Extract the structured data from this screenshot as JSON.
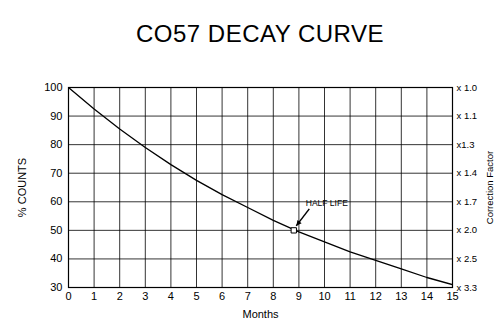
{
  "chart_data": {
    "type": "line",
    "title": "CO57 DECAY CURVE",
    "xlabel": "Months",
    "ylabel": "% COUNTS",
    "y2label": "Correction Factor",
    "x": [
      0,
      1,
      2,
      3,
      4,
      5,
      6,
      7,
      8,
      9,
      10,
      11,
      12,
      13,
      14,
      15
    ],
    "values": [
      100,
      92.5,
      85.5,
      79,
      73,
      67.5,
      62.5,
      58,
      53.5,
      49.5,
      46,
      42.5,
      39.5,
      36.5,
      33.5,
      31
    ],
    "color": "#000000",
    "xlim": [
      0,
      15
    ],
    "xticks": [
      0,
      1,
      2,
      3,
      4,
      5,
      6,
      7,
      8,
      9,
      10,
      11,
      12,
      13,
      14,
      15
    ],
    "ylim": [
      30,
      100
    ],
    "yticks": [
      30,
      40,
      50,
      60,
      70,
      80,
      90,
      100
    ],
    "y2lim": [
      3.333,
      1.0
    ],
    "y2ticks": [
      {
        "value": 1.0,
        "label": "x 1.0"
      },
      {
        "value": 1.111,
        "label": "x 1.1"
      },
      {
        "value": 1.25,
        "label": "x1.3"
      },
      {
        "value": 1.429,
        "label": "x 1.4"
      },
      {
        "value": 1.667,
        "label": "x 1.7"
      },
      {
        "value": 2.0,
        "label": "x 2.0"
      },
      {
        "value": 2.5,
        "label": "x 2.5"
      },
      {
        "value": 3.333,
        "label": "x 3.3"
      }
    ],
    "grid": true,
    "annotations": [
      {
        "text": "HALF LIFE",
        "x": 8.8,
        "y": 50
      }
    ]
  }
}
